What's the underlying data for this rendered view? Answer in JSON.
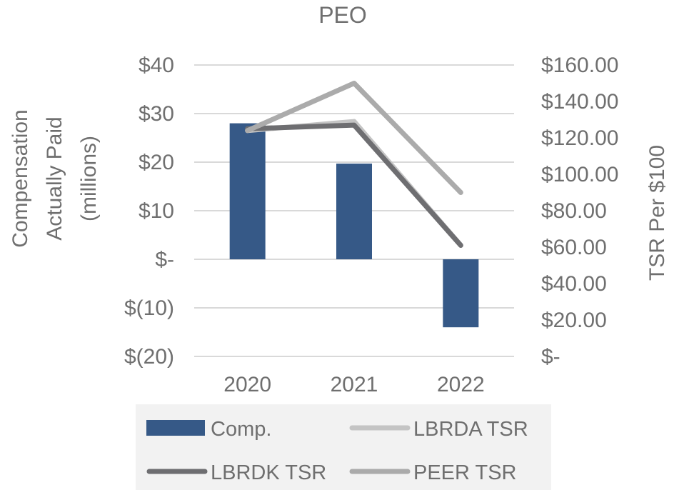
{
  "chart_data": {
    "type": "bar+line",
    "title": "PEO",
    "categories": [
      "2020",
      "2021",
      "2022"
    ],
    "y_left": {
      "label_lines": [
        "Compensation",
        "Actually Paid",
        "(millions)"
      ],
      "lim": [
        -20,
        40
      ],
      "ticks": [
        -20,
        -10,
        0,
        10,
        20,
        30,
        40
      ],
      "tick_labels": [
        "$(20)",
        "$(10)",
        "$-",
        "$10",
        "$20",
        "$30",
        "$40"
      ]
    },
    "y_right": {
      "label": "TSR Per $100",
      "lim": [
        0,
        160
      ],
      "ticks": [
        0,
        20,
        40,
        60,
        80,
        100,
        120,
        140,
        160
      ],
      "tick_labels": [
        "$-",
        "$20.00",
        "$40.00",
        "$60.00",
        "$80.00",
        "$100.00",
        "$120.00",
        "$140.00",
        "$160.00"
      ]
    },
    "grid": true,
    "legend_position": "bottom",
    "series": [
      {
        "name": "Comp.",
        "kind": "bar",
        "axis": "left",
        "color": "#365987",
        "values": [
          28,
          19.7,
          -14
        ]
      },
      {
        "name": "LBRDA TSR",
        "kind": "line",
        "axis": "right",
        "color": "#c4c4c4",
        "values": [
          124,
          129,
          61
        ]
      },
      {
        "name": "LBRDK TSR",
        "kind": "line",
        "axis": "right",
        "color": "#6e6e71",
        "values": [
          125,
          127,
          61
        ]
      },
      {
        "name": "PEER TSR",
        "kind": "line",
        "axis": "right",
        "color": "#ababab",
        "values": [
          124,
          150,
          90
        ]
      }
    ],
    "legend_order": [
      "Comp.",
      "LBRDA TSR",
      "LBRDK TSR",
      "PEER TSR"
    ]
  }
}
